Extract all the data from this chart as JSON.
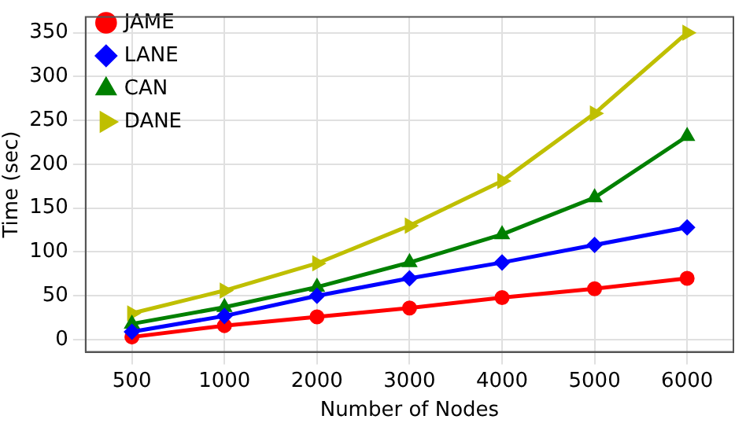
{
  "chart_data": {
    "type": "line",
    "xlabel": "Number of Nodes",
    "ylabel": "Time (sec)",
    "categories": [
      "500",
      "1000",
      "2000",
      "3000",
      "4000",
      "5000",
      "6000"
    ],
    "series": [
      {
        "name": "JAME",
        "color": "#ff0000",
        "marker": "circle",
        "values": [
          3,
          16,
          26,
          36,
          48,
          58,
          70
        ]
      },
      {
        "name": "LANE",
        "color": "#0000ff",
        "marker": "diamond",
        "values": [
          9,
          27,
          50,
          70,
          88,
          108,
          128
        ]
      },
      {
        "name": "CAN",
        "color": "#008000",
        "marker": "triangle",
        "values": [
          18,
          37,
          60,
          88,
          120,
          162,
          232
        ]
      },
      {
        "name": "DANE",
        "color": "#bfbf00",
        "marker": "triangle-right",
        "values": [
          30,
          56,
          87,
          130,
          181,
          258,
          350
        ]
      }
    ],
    "ylim": [
      -14,
      368
    ],
    "yticks": [
      0,
      50,
      100,
      150,
      200,
      250,
      300,
      350
    ],
    "grid": true,
    "legend": "top left",
    "line_style": "solid"
  }
}
